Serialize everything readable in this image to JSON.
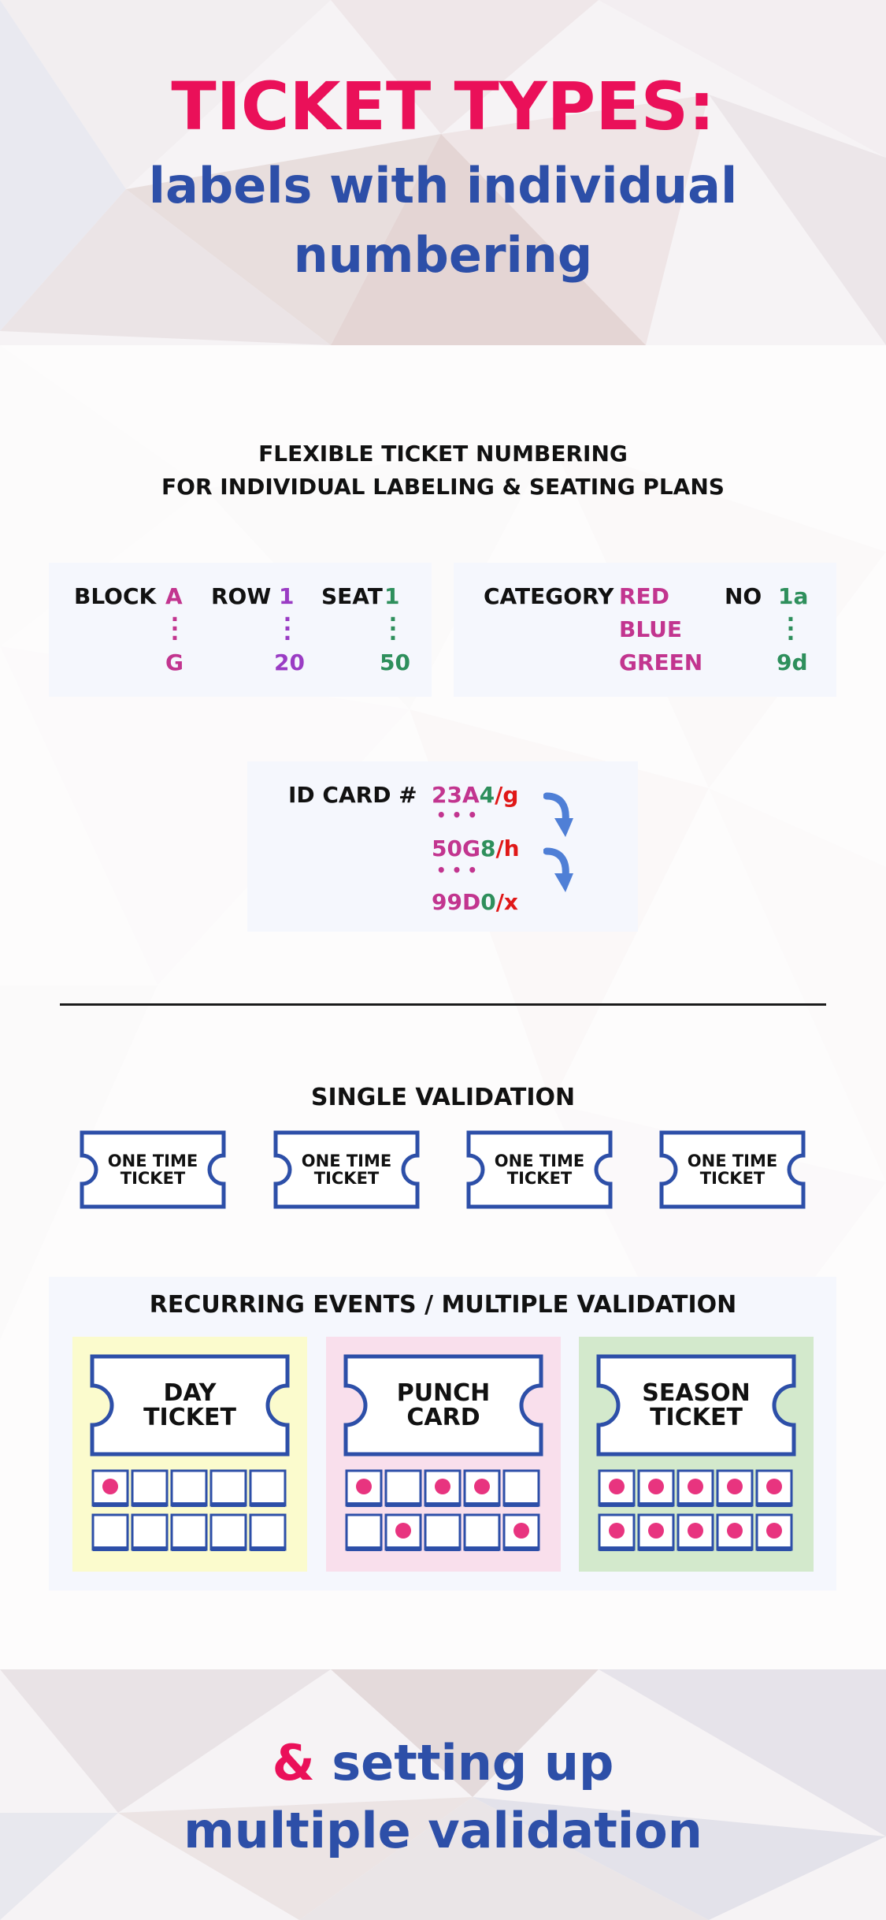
{
  "header": {
    "title": "TICKET TYPES:",
    "subtitle_line1": "labels with individual",
    "subtitle_line2": "numbering"
  },
  "numbering": {
    "heading_line1": "FLEXIBLE TICKET NUMBERING",
    "heading_line2": "FOR INDIVIDUAL LABELING & SEATING PLANS",
    "seating": {
      "block_label": "BLOCK",
      "block_first": "A",
      "block_last": "G",
      "row_label": "ROW",
      "row_first": "1",
      "row_last": "20",
      "seat_label": "SEAT",
      "seat_first": "1",
      "seat_last": "50"
    },
    "category": {
      "category_label": "CATEGORY",
      "values": [
        "RED",
        "BLUE",
        "GREEN"
      ],
      "no_label": "NO",
      "no_first": "1a",
      "no_last": "9d"
    },
    "id_card": {
      "label": "ID CARD #",
      "codes": [
        {
          "a": "23A",
          "b": "4",
          "c": "/g"
        },
        {
          "a": "50G",
          "b": "8",
          "c": "/h"
        },
        {
          "a": "99D",
          "b": "0",
          "c": "/x"
        }
      ],
      "ellipsis": "• • •",
      "arrow_icon": "curved-arrow-down"
    }
  },
  "single": {
    "heading": "SINGLE VALIDATION",
    "ticket_line1": "ONE TIME",
    "ticket_line2": "TICKET",
    "count": 4
  },
  "recurring": {
    "heading": "RECURRING EVENTS / MULTIPLE VALIDATION",
    "cards": [
      {
        "line1": "DAY",
        "line2": "TICKET",
        "bg": "#fbfbcd",
        "stamps": [
          [
            1,
            0,
            0,
            0,
            0
          ],
          [
            0,
            0,
            0,
            0,
            0
          ]
        ]
      },
      {
        "line1": "PUNCH",
        "line2": "CARD",
        "bg": "#f9dfec",
        "stamps": [
          [
            1,
            0,
            1,
            1,
            0
          ],
          [
            0,
            1,
            0,
            0,
            1
          ]
        ]
      },
      {
        "line1": "SEASON",
        "line2": "TICKET",
        "bg": "#d3e9cc",
        "stamps": [
          [
            1,
            1,
            1,
            1,
            1
          ],
          [
            1,
            1,
            1,
            1,
            1
          ]
        ]
      }
    ]
  },
  "footer": {
    "amp": "&",
    "line1_rest": "setting up",
    "line2": "multiple validation"
  },
  "colors": {
    "accent_pink": "#ea1059",
    "brand_blue": "#2d4fa8",
    "magenta": "#c2358f",
    "purple": "#9a3cc4",
    "green": "#2e8f5c",
    "red": "#e01818",
    "arrow_blue": "#4f7fd6"
  }
}
